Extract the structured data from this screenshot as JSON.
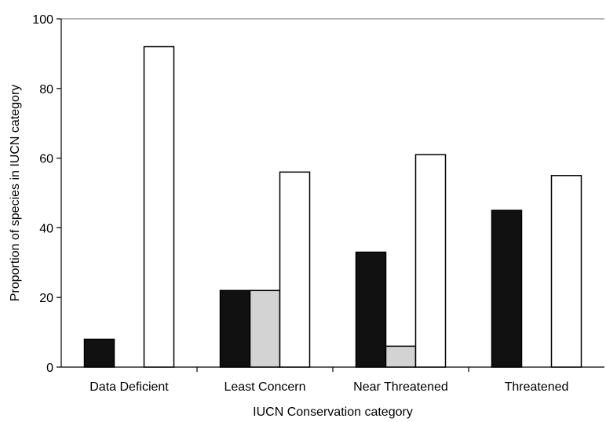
{
  "chart_data": {
    "type": "bar",
    "title": "",
    "xlabel": "IUCN Conservation category",
    "ylabel": "Proportion of species in IUCN category",
    "categories": [
      "Data Deficient",
      "Least Concern",
      "Near Threatened",
      "Threatened"
    ],
    "series": [
      {
        "values": [
          8,
          22,
          33,
          45
        ],
        "color": "#111111"
      },
      {
        "values": [
          0,
          22,
          6,
          0
        ],
        "color": "#d3d3d3"
      },
      {
        "values": [
          92,
          56,
          61,
          55
        ],
        "color": "#ffffff"
      }
    ],
    "ylim": [
      0,
      100
    ],
    "yticks": [
      0,
      20,
      40,
      60,
      80,
      100
    ],
    "grid": false,
    "top_reference_line": true,
    "legend": "none"
  }
}
